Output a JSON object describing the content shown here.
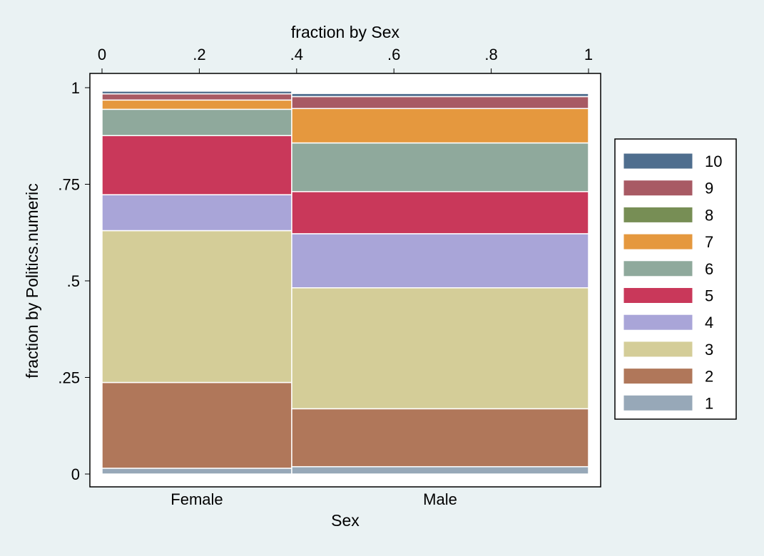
{
  "chart_data": {
    "type": "mosaic",
    "title": "",
    "top_axis_title": "fraction by Sex",
    "top_ticks": [
      "0",
      ".2",
      ".4",
      ".6",
      ".8",
      "1"
    ],
    "top_tick_values": [
      0,
      0.2,
      0.4,
      0.6,
      0.8,
      1
    ],
    "ylabel": "fraction by Politics.numeric",
    "y_ticks": [
      "0",
      ".25",
      ".5",
      ".75",
      "1"
    ],
    "y_tick_values": [
      0,
      0.25,
      0.5,
      0.75,
      1
    ],
    "xlabel": "Sex",
    "categories": [
      "Female",
      "Male"
    ],
    "category_widths": [
      0.39,
      0.61
    ],
    "series": [
      {
        "name": "1",
        "color": "#97a8b8",
        "values": [
          0.015,
          0.019
        ]
      },
      {
        "name": "2",
        "color": "#b0775a",
        "values": [
          0.222,
          0.15
        ]
      },
      {
        "name": "3",
        "color": "#d4cd98",
        "values": [
          0.393,
          0.313
        ]
      },
      {
        "name": "4",
        "color": "#a9a5d8",
        "values": [
          0.093,
          0.14
        ]
      },
      {
        "name": "5",
        "color": "#c9385a",
        "values": [
          0.153,
          0.109
        ]
      },
      {
        "name": "6",
        "color": "#8fa99c",
        "values": [
          0.068,
          0.126
        ]
      },
      {
        "name": "7",
        "color": "#e5983e",
        "values": [
          0.024,
          0.089
        ]
      },
      {
        "name": "8",
        "color": "#778e55",
        "values": [
          0.0,
          0.0
        ]
      },
      {
        "name": "9",
        "color": "#a85a64",
        "values": [
          0.016,
          0.031
        ]
      },
      {
        "name": "10",
        "color": "#4f6e8e",
        "values": [
          0.007,
          0.008
        ]
      }
    ],
    "legend_position": "right",
    "ylim": [
      0,
      1
    ],
    "xlim": [
      0,
      1
    ]
  }
}
